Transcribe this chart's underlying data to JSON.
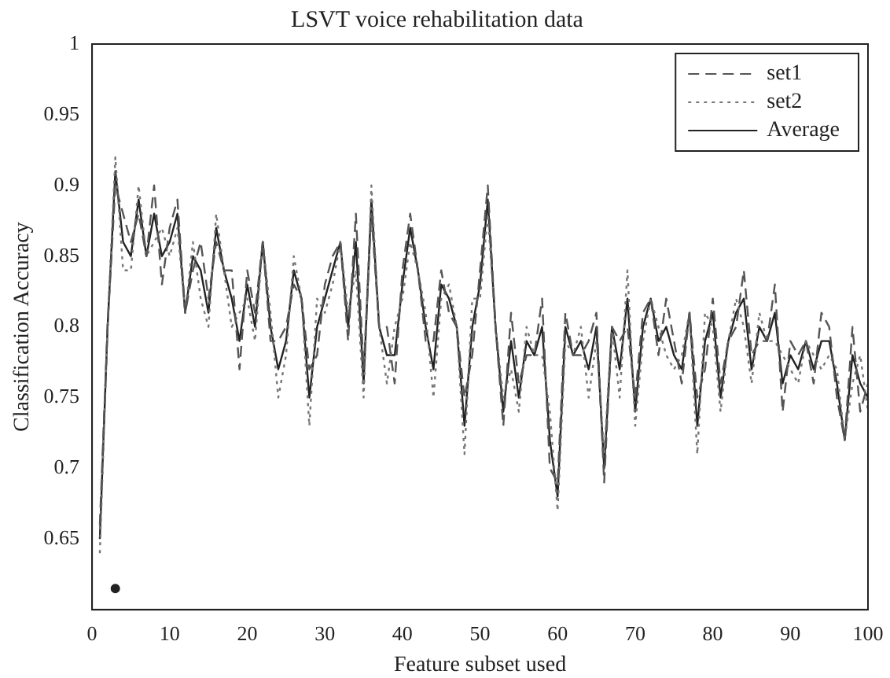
{
  "chart_data": {
    "type": "line",
    "title": "LSVT voice rehabilitation data",
    "xlabel": "Feature subset used",
    "ylabel": "Classification Accuracy",
    "x": [
      1,
      2,
      3,
      4,
      5,
      6,
      7,
      8,
      9,
      10,
      11,
      12,
      13,
      14,
      15,
      16,
      17,
      18,
      19,
      20,
      21,
      22,
      23,
      24,
      25,
      26,
      27,
      28,
      29,
      30,
      31,
      32,
      33,
      34,
      35,
      36,
      37,
      38,
      39,
      40,
      41,
      42,
      43,
      44,
      45,
      46,
      47,
      48,
      49,
      50,
      51,
      52,
      53,
      54,
      55,
      56,
      57,
      58,
      59,
      60,
      61,
      62,
      63,
      64,
      65,
      66,
      67,
      68,
      69,
      70,
      71,
      72,
      73,
      74,
      75,
      76,
      77,
      78,
      79,
      80,
      81,
      82,
      83,
      84,
      85,
      86,
      87,
      88,
      89,
      90,
      91,
      92,
      93,
      94,
      95,
      96,
      97,
      98,
      99,
      100
    ],
    "series": [
      {
        "name": "set1",
        "color": "#555555",
        "line_style": "dashed",
        "values": [
          0.66,
          0.8,
          0.9,
          0.88,
          0.86,
          0.88,
          0.85,
          0.9,
          0.83,
          0.87,
          0.89,
          0.81,
          0.84,
          0.86,
          0.82,
          0.86,
          0.84,
          0.84,
          0.77,
          0.84,
          0.81,
          0.86,
          0.79,
          0.79,
          0.8,
          0.83,
          0.82,
          0.77,
          0.78,
          0.83,
          0.85,
          0.86,
          0.79,
          0.88,
          0.77,
          0.88,
          0.8,
          0.8,
          0.76,
          0.84,
          0.88,
          0.84,
          0.79,
          0.79,
          0.84,
          0.81,
          0.8,
          0.75,
          0.78,
          0.84,
          0.9,
          0.8,
          0.73,
          0.81,
          0.76,
          0.78,
          0.78,
          0.82,
          0.7,
          0.69,
          0.81,
          0.78,
          0.78,
          0.79,
          0.81,
          0.69,
          0.8,
          0.79,
          0.8,
          0.75,
          0.81,
          0.82,
          0.78,
          0.82,
          0.79,
          0.76,
          0.81,
          0.75,
          0.77,
          0.82,
          0.76,
          0.79,
          0.8,
          0.84,
          0.78,
          0.79,
          0.79,
          0.83,
          0.74,
          0.79,
          0.78,
          0.79,
          0.76,
          0.81,
          0.8,
          0.75,
          0.72,
          0.8,
          0.74,
          0.76
        ]
      },
      {
        "name": "set2",
        "color": "#777777",
        "line_style": "dotted",
        "values": [
          0.64,
          0.8,
          0.92,
          0.84,
          0.84,
          0.9,
          0.85,
          0.86,
          0.87,
          0.85,
          0.87,
          0.81,
          0.86,
          0.82,
          0.8,
          0.88,
          0.84,
          0.8,
          0.81,
          0.82,
          0.79,
          0.86,
          0.81,
          0.75,
          0.78,
          0.85,
          0.82,
          0.73,
          0.82,
          0.81,
          0.83,
          0.86,
          0.81,
          0.84,
          0.75,
          0.9,
          0.8,
          0.76,
          0.8,
          0.82,
          0.86,
          0.84,
          0.81,
          0.75,
          0.82,
          0.83,
          0.8,
          0.71,
          0.82,
          0.82,
          0.88,
          0.8,
          0.75,
          0.77,
          0.74,
          0.8,
          0.78,
          0.78,
          0.74,
          0.67,
          0.79,
          0.78,
          0.8,
          0.75,
          0.79,
          0.71,
          0.8,
          0.75,
          0.84,
          0.73,
          0.79,
          0.82,
          0.8,
          0.78,
          0.77,
          0.78,
          0.81,
          0.71,
          0.81,
          0.8,
          0.74,
          0.79,
          0.82,
          0.8,
          0.76,
          0.81,
          0.79,
          0.79,
          0.78,
          0.77,
          0.76,
          0.79,
          0.78,
          0.77,
          0.78,
          0.77,
          0.72,
          0.76,
          0.78,
          0.74
        ]
      },
      {
        "name": "Average",
        "color": "#222222",
        "line_style": "solid",
        "values": [
          0.65,
          0.8,
          0.91,
          0.86,
          0.85,
          0.89,
          0.85,
          0.88,
          0.85,
          0.86,
          0.88,
          0.81,
          0.85,
          0.84,
          0.81,
          0.87,
          0.84,
          0.82,
          0.79,
          0.83,
          0.8,
          0.86,
          0.8,
          0.77,
          0.79,
          0.84,
          0.82,
          0.75,
          0.8,
          0.82,
          0.84,
          0.86,
          0.8,
          0.86,
          0.76,
          0.89,
          0.8,
          0.78,
          0.78,
          0.83,
          0.87,
          0.84,
          0.8,
          0.77,
          0.83,
          0.82,
          0.8,
          0.73,
          0.8,
          0.83,
          0.89,
          0.8,
          0.74,
          0.79,
          0.75,
          0.79,
          0.78,
          0.8,
          0.72,
          0.68,
          0.8,
          0.78,
          0.79,
          0.77,
          0.8,
          0.7,
          0.8,
          0.77,
          0.82,
          0.74,
          0.8,
          0.82,
          0.79,
          0.8,
          0.78,
          0.77,
          0.81,
          0.73,
          0.79,
          0.81,
          0.75,
          0.79,
          0.81,
          0.82,
          0.77,
          0.8,
          0.79,
          0.81,
          0.76,
          0.78,
          0.77,
          0.79,
          0.77,
          0.79,
          0.79,
          0.76,
          0.72,
          0.78,
          0.76,
          0.75
        ]
      },
      {
        "type": "scatter",
        "color": "#222222",
        "marker": "circle",
        "x": [
          3
        ],
        "values": [
          0.615
        ]
      }
    ],
    "xlim": [
      0,
      100
    ],
    "xticks": [
      0,
      10,
      20,
      30,
      40,
      50,
      60,
      70,
      80,
      90,
      100
    ],
    "ylim": [
      0.6,
      1
    ],
    "yticks": [
      0.65,
      0.7,
      0.75,
      0.8,
      0.85,
      0.9,
      0.95,
      1
    ],
    "grid": false,
    "legend": "top right",
    "marker": "none"
  }
}
